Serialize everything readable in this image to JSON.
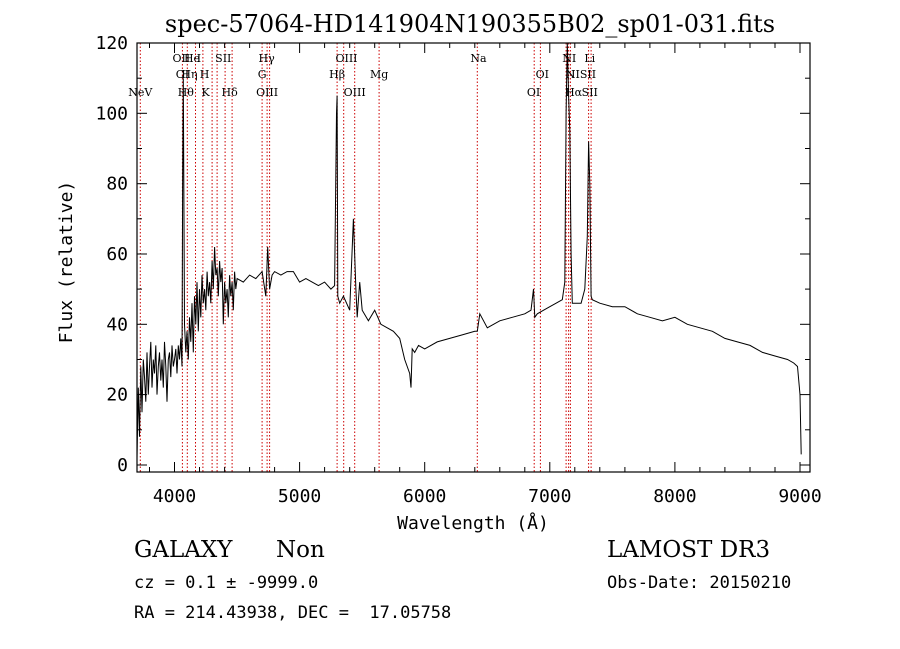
{
  "chart_data": {
    "type": "line",
    "title": "spec-57064-HD141904N190355B02_sp01-031.fits",
    "xlabel": "Wavelength (Å)",
    "ylabel": "Flux (relative)",
    "xlim": [
      3700,
      9080
    ],
    "ylim": [
      -2,
      120
    ],
    "xticks": [
      4000,
      5000,
      6000,
      7000,
      8000,
      9000
    ],
    "yticks": [
      0,
      20,
      40,
      60,
      80,
      100,
      120
    ],
    "grid": false,
    "line_color": "#000000",
    "marker_color": "#cc0000",
    "series": [
      {
        "x": [
          3700,
          3710,
          3720,
          3730,
          3740,
          3750,
          3760,
          3770,
          3780,
          3790,
          3800,
          3810,
          3820,
          3830,
          3840,
          3850,
          3860,
          3870,
          3880,
          3890,
          3900,
          3910,
          3920,
          3930,
          3940,
          3950,
          3960,
          3970,
          3980,
          3990,
          4000,
          4010,
          4020,
          4030,
          4040,
          4050,
          4060,
          4065,
          4070,
          4080,
          4090,
          4100,
          4110,
          4120,
          4130,
          4140,
          4150,
          4160,
          4170,
          4180,
          4190,
          4200,
          4210,
          4220,
          4230,
          4240,
          4250,
          4260,
          4270,
          4280,
          4290,
          4300,
          4310,
          4320,
          4330,
          4340,
          4350,
          4360,
          4370,
          4380,
          4390,
          4400,
          4410,
          4420,
          4430,
          4440,
          4450,
          4460,
          4470,
          4480,
          4490,
          4500,
          4550,
          4600,
          4650,
          4700,
          4730,
          4745,
          4760,
          4780,
          4800,
          4850,
          4900,
          4950,
          5000,
          5050,
          5100,
          5150,
          5200,
          5250,
          5280,
          5295,
          5300,
          5305,
          5320,
          5350,
          5400,
          5430,
          5450,
          5460,
          5480,
          5500,
          5550,
          5600,
          5650,
          5700,
          5750,
          5800,
          5840,
          5860,
          5880,
          5890,
          5900,
          5920,
          5950,
          6000,
          6100,
          6200,
          6300,
          6400,
          6420,
          6440,
          6500,
          6600,
          6700,
          6800,
          6850,
          6870,
          6880,
          6900,
          6950,
          7000,
          7050,
          7100,
          7120,
          7130,
          7140,
          7150,
          7160,
          7170,
          7180,
          7200,
          7250,
          7280,
          7300,
          7310,
          7320,
          7330,
          7340,
          7400,
          7500,
          7600,
          7700,
          7800,
          7900,
          8000,
          8100,
          8200,
          8300,
          8400,
          8500,
          8600,
          8700,
          8800,
          8900,
          8950,
          8980,
          9000,
          9010
        ],
        "y": [
          2,
          22,
          8,
          28,
          15,
          30,
          25,
          18,
          32,
          20,
          28,
          35,
          22,
          30,
          26,
          34,
          20,
          28,
          32,
          24,
          30,
          22,
          35,
          28,
          18,
          30,
          32,
          25,
          34,
          28,
          30,
          33,
          26,
          34,
          30,
          36,
          28,
          85,
          110,
          40,
          32,
          38,
          30,
          42,
          35,
          46,
          32,
          48,
          40,
          52,
          38,
          50,
          42,
          54,
          46,
          50,
          44,
          55,
          48,
          52,
          46,
          58,
          50,
          62,
          54,
          56,
          48,
          58,
          52,
          56,
          40,
          52,
          46,
          50,
          42,
          54,
          48,
          52,
          44,
          55,
          50,
          53,
          52,
          54,
          53,
          55,
          48,
          62,
          50,
          54,
          55,
          54,
          55,
          55,
          52,
          53,
          52,
          51,
          52,
          50,
          51,
          100,
          105,
          48,
          46,
          48,
          44,
          70,
          50,
          42,
          52,
          44,
          41,
          44,
          40,
          39,
          38,
          36,
          30,
          28,
          26,
          22,
          33,
          32,
          34,
          33,
          35,
          36,
          37,
          38,
          38,
          43,
          39,
          41,
          42,
          43,
          44,
          50,
          42,
          43,
          44,
          45,
          46,
          47,
          52,
          100,
          120,
          105,
          95,
          60,
          46,
          46,
          46,
          50,
          65,
          92,
          80,
          48,
          47,
          46,
          45,
          45,
          43,
          42,
          41,
          42,
          40,
          39,
          38,
          36,
          35,
          34,
          32,
          31,
          30,
          29,
          28,
          20,
          3
        ]
      }
    ],
    "line_markers": [
      {
        "label": "NeV",
        "wl": 3726,
        "row": 2
      },
      {
        "label": "OII",
        "wl": 4055,
        "row": 0
      },
      {
        "label": "OI",
        "wl": 4063,
        "row": 1
      },
      {
        "label": "He",
        "wl": 4140,
        "row": 0
      },
      {
        "label": "Hη",
        "wl": 4120,
        "row": 1
      },
      {
        "label": "Hθ",
        "wl": 4090,
        "row": 2
      },
      {
        "label": "I",
        "wl": 4195,
        "row": 0
      },
      {
        "label": "H",
        "wl": 4240,
        "row": 1
      },
      {
        "label": "K",
        "wl": 4248,
        "row": 2
      },
      {
        "label": "SII",
        "wl": 4390,
        "row": 0
      },
      {
        "label": "Hδ",
        "wl": 4440,
        "row": 2
      },
      {
        "label": "Hγ",
        "wl": 4736,
        "row": 0
      },
      {
        "label": "G",
        "wl": 4700,
        "row": 1
      },
      {
        "label": "OIII",
        "wl": 4740,
        "row": 2
      },
      {
        "label": "OIII",
        "wl": 5375,
        "row": 0
      },
      {
        "label": "Hβ",
        "wl": 5300,
        "row": 1
      },
      {
        "label": "OIII",
        "wl": 5440,
        "row": 2
      },
      {
        "label": "Mg",
        "wl": 5635,
        "row": 1
      },
      {
        "label": "Na",
        "wl": 6430,
        "row": 0
      },
      {
        "label": "OI",
        "wl": 6940,
        "row": 1
      },
      {
        "label": "OI",
        "wl": 6870,
        "row": 2
      },
      {
        "label": "NI",
        "wl": 7155,
        "row": 0
      },
      {
        "label": "Li",
        "wl": 7320,
        "row": 0
      },
      {
        "label": "N",
        "wl": 7165,
        "row": 1
      },
      {
        "label": "IISII",
        "wl": 7270,
        "row": 1
      },
      {
        "label": "Hα",
        "wl": 7190,
        "row": 2
      },
      {
        "label": "SII",
        "wl": 7320,
        "row": 2
      }
    ],
    "line_wavelengths": [
      3726,
      4063,
      4102,
      4168,
      4227,
      4300,
      4340,
      4404,
      4460,
      4700,
      4740,
      4760,
      5300,
      5352,
      5440,
      5635,
      6420,
      6875,
      6925,
      7130,
      7150,
      7165,
      7310,
      7330
    ]
  },
  "footer": {
    "class_label": "GALAXY",
    "subclass_label": "Non",
    "survey": "LAMOST DR3",
    "cz": "cz = 0.1 ± -9999.0",
    "obs_date": "Obs-Date: 20150210",
    "coords": "RA = 214.43938, DEC =  17.05758"
  }
}
